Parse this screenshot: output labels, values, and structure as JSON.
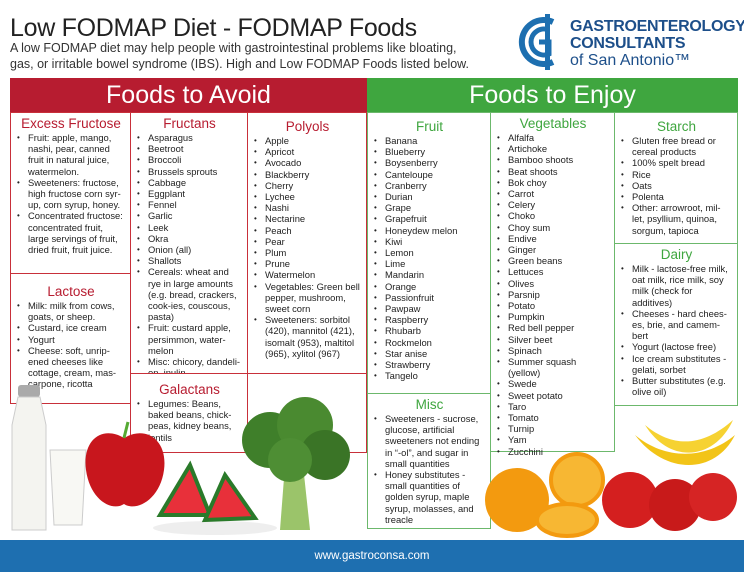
{
  "header": {
    "title": "Low FODMAP Diet - FODMAP Foods",
    "subtitle": "A low FODMAP diet may help people with gastrointestinal problems like bloating, gas, or irritable bowel syndrome (IBS). High and Low FODMAP Foods listed below."
  },
  "logo": {
    "line1": "GASTROENTEROLOGY",
    "line2": "CONSULTANTS",
    "line3": "of San Antonio™",
    "color": "#1d4f8a"
  },
  "avoid": {
    "label": "Foods to Avoid",
    "color": "#b71c30",
    "excess_fructose": {
      "title": "Excess Fructose",
      "items": [
        "Fruit: apple, mango, nashi, pear, canned fruit in natural juice, watermelon.",
        "Sweeteners: fructose, high fructose corn syr-up, corn syrup, honey.",
        "Concentrated fructose: concentrated fruit, large servings of fruit, dried fruit, fruit juice."
      ]
    },
    "lactose": {
      "title": "Lactose",
      "items": [
        "Milk: milk from cows, goats, or sheep.",
        "Custard, ice cream",
        "Yogurt",
        "Cheese: soft, unrip-ened cheeses like cottage, cream, mas-carpone, ricotta"
      ]
    },
    "fructans": {
      "title": "Fructans",
      "items": [
        "Asparagus",
        "Beetroot",
        "Broccoli",
        "Brussels sprouts",
        "Cabbage",
        "Eggplant",
        "Fennel",
        "Garlic",
        "Leek",
        "Okra",
        "Onion (all)",
        "Shallots",
        "Cereals: wheat and rye in large amounts (e.g. bread, crackers, cook-ies, couscous, pasta)",
        "Fruit: custard apple, persimmon, water-melon",
        "Misc: chicory, dandeli-on, inulin"
      ]
    },
    "galactans": {
      "title": "Galactans",
      "items": [
        "Legumes: Beans, baked beans, chick-peas, kidney beans, lentils"
      ]
    },
    "polyols": {
      "title": "Polyols",
      "items": [
        "Apple",
        "Apricot",
        "Avocado",
        "Blackberry",
        "Cherry",
        "Lychee",
        "Nashi",
        "Nectarine",
        "Peach",
        "Pear",
        "Plum",
        "Prune",
        "Watermelon",
        "Vegetables: Green bell pepper, mushroom, sweet corn",
        "Sweeteners: sorbitol (420), mannitol (421), isomalt (953), maltitol (965), xylitol (967)"
      ]
    }
  },
  "enjoy": {
    "label": "Foods to Enjoy",
    "color": "#3fa63f",
    "fruit": {
      "title": "Fruit",
      "items": [
        "Banana",
        "Blueberry",
        "Boysenberry",
        "Canteloupe",
        "Cranberry",
        "Durian",
        "Grape",
        "Grapefruit",
        "Honeydew melon",
        "Kiwi",
        "Lemon",
        "Lime",
        "Mandarin",
        "Orange",
        "Passionfruit",
        "Pawpaw",
        "Raspberry",
        "Rhubarb",
        "Rockmelon",
        "Star anise",
        "Strawberry",
        "Tangelo"
      ]
    },
    "misc": {
      "title": "Misc",
      "items": [
        "Sweeteners - sucrose, glucose, artificial sweeteners not ending in “-ol”, and sugar in small quantities",
        "Honey substitutes - small quantities of golden syrup, maple syrup, molasses, and treacle"
      ]
    },
    "vegetables": {
      "title": "Vegetables",
      "items": [
        "Alfalfa",
        "Artichoke",
        "Bamboo shoots",
        "Beat shoots",
        "Bok choy",
        "Carrot",
        "Celery",
        "Choko",
        "Choy sum",
        "Endive",
        "Ginger",
        "Green beans",
        "Lettuces",
        "Olives",
        "Parsnip",
        "Potato",
        "Pumpkin",
        "Red bell pepper",
        "Silver beet",
        "Spinach",
        "Summer squash (yellow)",
        "Swede",
        "Sweet potato",
        "Taro",
        "Tomato",
        "Turnip",
        "Yam",
        "Zucchini"
      ]
    },
    "starch": {
      "title": "Starch",
      "items": [
        "Gluten free bread or cereal products",
        "100% spelt bread",
        "Rice",
        "Oats",
        "Polenta",
        "Other: arrowroot, mil-let, psyllium, quinoa, sorgum, tapioca"
      ]
    },
    "dairy": {
      "title": "Dairy",
      "items": [
        "Milk - lactose-free milk, oat milk, rice milk, soy milk (check for additives)",
        "Cheeses - hard chees-es, brie, and camem-bert",
        "Yogurt (lactose free)",
        "Ice cream substitutes - gelati, sorbet",
        "Butter substitutes (e.g. olive oil)"
      ]
    }
  },
  "footer": {
    "url": "www.gastroconsa.com",
    "color": "#1e6fb0"
  }
}
